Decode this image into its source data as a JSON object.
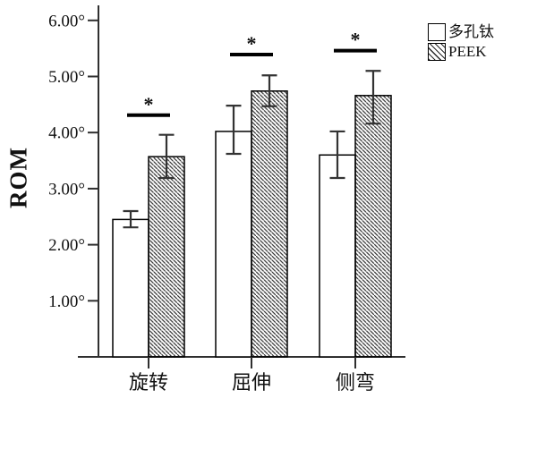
{
  "chart_data": {
    "type": "bar",
    "title": "",
    "ylabel": "ROM",
    "xlabel": "",
    "y_unit": "degrees",
    "ylim": [
      0,
      6.3
    ],
    "grid": false,
    "legend_position": "top-right",
    "y_ticks": [
      {
        "value": 1,
        "label": "1.00°"
      },
      {
        "value": 2,
        "label": "2.00°"
      },
      {
        "value": 3,
        "label": "3.00°"
      },
      {
        "value": 4,
        "label": "4.00°"
      },
      {
        "value": 5,
        "label": "5.00°"
      },
      {
        "value": 6,
        "label": "6.00°"
      }
    ],
    "categories": [
      "旋转",
      "屈伸",
      "侧弯"
    ],
    "series": [
      {
        "name": "多孔钛",
        "style": "plain",
        "values": [
          2.45,
          4.02,
          3.6
        ],
        "error_low": [
          2.31,
          3.62,
          3.19
        ],
        "error_high": [
          2.6,
          4.48,
          4.02
        ]
      },
      {
        "name": "PEEK",
        "style": "hatched",
        "values": [
          3.57,
          4.74,
          4.66
        ],
        "error_low": [
          3.19,
          4.47,
          4.16
        ],
        "error_high": [
          3.96,
          5.02,
          5.1
        ]
      }
    ],
    "significance": [
      {
        "group": "旋转",
        "marker": "*",
        "line_level": 4.31
      },
      {
        "group": "屈伸",
        "marker": "*",
        "line_level": 5.39
      },
      {
        "group": "侧弯",
        "marker": "*",
        "line_level": 5.46
      }
    ]
  },
  "legend": {
    "items": [
      {
        "label": "多孔钛",
        "swatch": "plain"
      },
      {
        "label": "PEEK",
        "swatch": "hatched"
      }
    ]
  },
  "colors": {
    "axis": "#2f2f2f",
    "bar_border": "#000000",
    "bar_fill": "#ffffff",
    "hatch_line": "#2a2a2a",
    "error_bar": "#333333",
    "sig_line": "#000000",
    "text": "#111111"
  }
}
